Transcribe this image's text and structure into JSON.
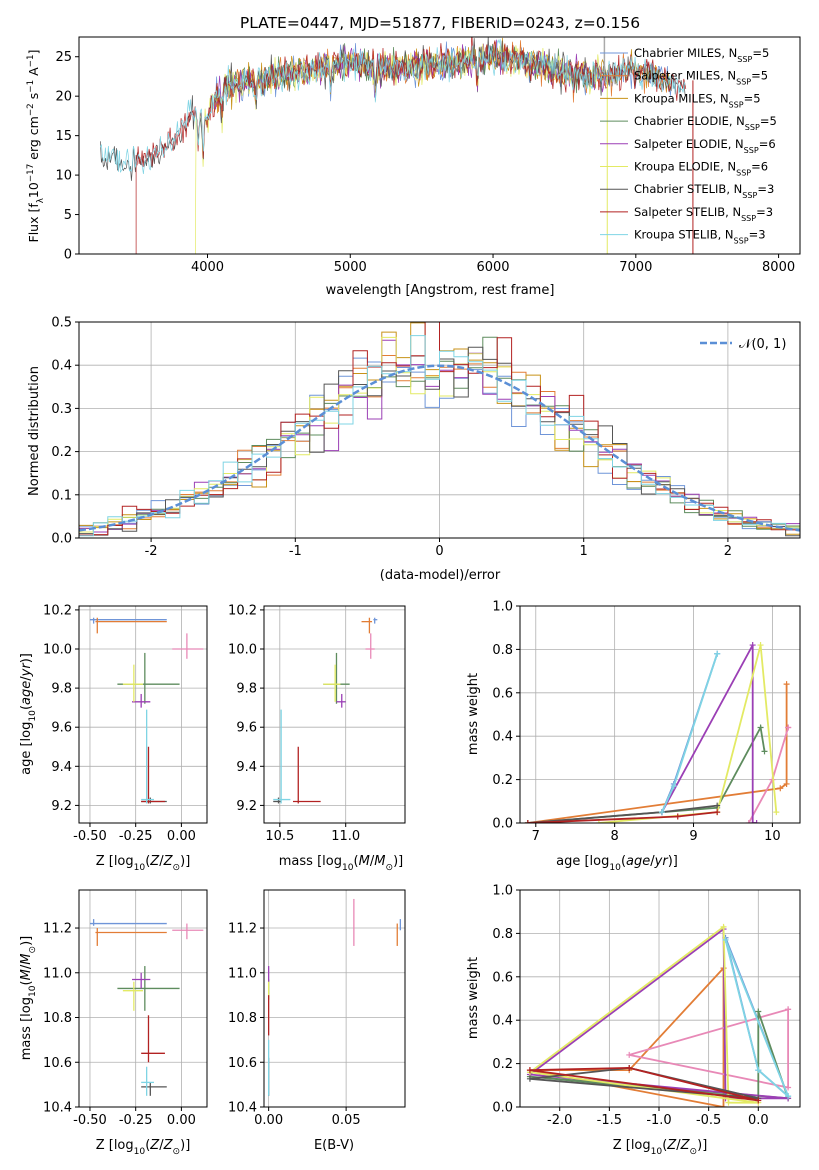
{
  "chart_data": [
    {
      "id": "spectrum",
      "type": "line",
      "title": "PLATE=0447, MJD=51877, FIBERID=0243, z=0.156",
      "xlabel": "wavelength [Angstrom, rest frame]",
      "ylabel": "Flux [fλ10⁻¹⁷ erg cm⁻² s⁻¹ A⁻¹]",
      "xlim": [
        3100,
        8150
      ],
      "ylim": [
        0,
        27.5
      ],
      "xticks": [
        4000,
        5000,
        6000,
        7000,
        8000
      ],
      "yticks": [
        0,
        5,
        10,
        15,
        20,
        25
      ],
      "grid": false,
      "legend": "right",
      "data_series_anchor_x": [
        3250,
        3400,
        3600,
        3800,
        3900,
        4000,
        4100,
        4300,
        4500,
        4800,
        5000,
        5200,
        5500,
        5800,
        6000,
        6200,
        6500,
        6800,
        7000,
        7200,
        7350
      ],
      "data_series_anchor_y": [
        12.5,
        11.5,
        12.0,
        15.5,
        18.0,
        17.5,
        21.0,
        22.0,
        22.5,
        23.5,
        24.5,
        23.5,
        23.8,
        24.5,
        25.0,
        24.6,
        23.0,
        22.5,
        23.5,
        22.0,
        21.0
      ],
      "series": [
        {
          "name": "Chabrier MILES, N",
          "sub": "SSP",
          "suffix": "=5",
          "color": "#6f95d8",
          "xrange": [
            4050,
            7250
          ]
        },
        {
          "name": "Salpeter MILES, N",
          "sub": "SSP",
          "suffix": "=5",
          "color": "#e27d36",
          "xrange": [
            4050,
            7250
          ]
        },
        {
          "name": "Kroupa MILES, N",
          "sub": "SSP",
          "suffix": "=5",
          "color": "#c89218",
          "xrange": [
            4050,
            7250
          ]
        },
        {
          "name": "Chabrier ELODIE, N",
          "sub": "SSP",
          "suffix": "=5",
          "color": "#5e8c5e",
          "xrange": [
            4050,
            6800
          ]
        },
        {
          "name": "Salpeter ELODIE, N",
          "sub": "SSP",
          "suffix": "=6",
          "color": "#9b3fb5",
          "xrange": [
            4050,
            6800
          ]
        },
        {
          "name": "Kroupa ELODIE, N",
          "sub": "SSP",
          "suffix": "=6",
          "color": "#e3ea64",
          "xrange": [
            3920,
            6800
          ]
        },
        {
          "name": "Chabrier STELIB, N",
          "sub": "SSP",
          "suffix": "=3",
          "color": "#555555",
          "xrange": [
            3250,
            7350
          ]
        },
        {
          "name": "Salpeter STELIB, N",
          "sub": "SSP",
          "suffix": "=3",
          "color": "#b22222",
          "xrange": [
            3500,
            7350
          ]
        },
        {
          "name": "Kroupa STELIB, N",
          "sub": "SSP",
          "suffix": "=3",
          "color": "#7fd4e4",
          "xrange": [
            3250,
            7350
          ]
        }
      ]
    },
    {
      "id": "residuals",
      "type": "step",
      "xlabel": "(data-model)/error",
      "ylabel": "Normed distribution",
      "xlim": [
        -2.5,
        2.5
      ],
      "ylim": [
        0,
        0.5
      ],
      "xticks": [
        -2,
        -1,
        0,
        1,
        2
      ],
      "yticks": [
        0.0,
        0.1,
        0.2,
        0.3,
        0.4,
        0.5
      ],
      "grid": true,
      "legend": "top-right",
      "gauss_label": "𝒩(0, 1)",
      "gauss_color": "#5b8fd6",
      "bin_width": 0.1,
      "bin_start": -2.5
    },
    {
      "id": "age_vs_Z",
      "type": "errorbar",
      "xlabel_pre": "Z [log",
      "xlabel_sub": "10",
      "xlabel_post": "(Z/Z",
      "xlabel": "Z [log10(Z/Z⊙)]",
      "ylabel": "age [log10(age/yr)]",
      "xlim": [
        -0.56,
        0.14
      ],
      "ylim": [
        9.11,
        10.22
      ],
      "xticks": [
        -0.5,
        -0.25,
        0.0
      ],
      "yticks": [
        9.2,
        9.4,
        9.6,
        9.8,
        10.0,
        10.2
      ],
      "grid": true
    },
    {
      "id": "age_vs_mass",
      "type": "errorbar",
      "xlabel": "mass [log10(M/M⊙)]",
      "xlim": [
        10.38,
        11.45
      ],
      "ylim": [
        9.11,
        10.22
      ],
      "xticks": [
        10.5,
        11.0
      ],
      "yticks": [
        9.2,
        9.4,
        9.6,
        9.8,
        10.0,
        10.2
      ],
      "grid": true
    },
    {
      "id": "mw_vs_age",
      "type": "line",
      "xlabel": "age [log10(age/yr)]",
      "ylabel": "mass weight",
      "xlim": [
        6.8,
        10.35
      ],
      "ylim": [
        0,
        1.0
      ],
      "xticks": [
        7,
        8,
        9,
        10
      ],
      "yticks": [
        0.0,
        0.2,
        0.4,
        0.6,
        0.8,
        1.0
      ],
      "grid": true
    },
    {
      "id": "mass_vs_Z",
      "type": "errorbar",
      "xlabel": "Z [log10(Z/Z⊙)]",
      "ylabel": "mass [log10(M/M⊙)]",
      "xlim": [
        -0.56,
        0.14
      ],
      "ylim": [
        10.4,
        11.37
      ],
      "xticks": [
        -0.5,
        -0.25,
        0.0
      ],
      "yticks": [
        10.4,
        10.6,
        10.8,
        11.0,
        11.2
      ],
      "grid": true
    },
    {
      "id": "mass_vs_ebv",
      "type": "errorbar",
      "xlabel": "E(B-V)",
      "xlim": [
        -0.003,
        0.088
      ],
      "ylim": [
        10.4,
        11.37
      ],
      "xticks": [
        0.0,
        0.05
      ],
      "yticks": [
        10.4,
        10.6,
        10.8,
        11.0,
        11.2
      ],
      "grid": true
    },
    {
      "id": "mw_vs_Z",
      "type": "line",
      "xlabel": "Z [log10(Z/Z⊙)]",
      "ylabel": "mass weight",
      "xlim": [
        -2.4,
        0.42
      ],
      "ylim": [
        0,
        1.0
      ],
      "xticks": [
        -2.0,
        -1.5,
        -1.0,
        -0.5,
        0.0
      ],
      "yticks": [
        0.0,
        0.2,
        0.4,
        0.6,
        0.8,
        1.0
      ],
      "grid": true
    }
  ],
  "fits": [
    {
      "color": "#6f95d8",
      "Z": -0.48,
      "Zlo": -0.5,
      "Zhi": -0.08,
      "age": 10.15,
      "alo": 10.13,
      "ahi": 10.16,
      "mass": 11.22,
      "mlo": 11.21,
      "mhi": 11.24,
      "ebv": 0.085,
      "elo": 11.19,
      "ehi": 11.24,
      "ages": [
        8.6,
        8.75,
        9.3
      ],
      "ageW": [
        0.05,
        0.18,
        0.78
      ],
      "Zs": [
        -0.33,
        0.0,
        0.3
      ],
      "ZW": [
        0.78,
        0.17,
        0.05
      ]
    },
    {
      "color": "#e27d36",
      "Z": -0.46,
      "Zlo": -0.47,
      "Zhi": -0.08,
      "age": 10.14,
      "alo": 10.08,
      "ahi": 10.16,
      "mass": 11.18,
      "mlo": 11.12,
      "mhi": 11.2,
      "ebv": 0.083,
      "elo": 11.12,
      "ehi": 11.22,
      "ages": [
        6.9,
        10.1,
        10.18,
        10.18
      ],
      "ageW": [
        0.0,
        0.16,
        0.18,
        0.64
      ],
      "Zs": [
        -2.3,
        -1.3,
        -0.35,
        -0.35
      ],
      "ZW": [
        0.17,
        0.17,
        0.64,
        0.0
      ]
    },
    {
      "color": "#e889b7",
      "Z": 0.03,
      "Zlo": -0.05,
      "Zhi": 0.12,
      "age": 10.0,
      "alo": 9.95,
      "ahi": 10.08,
      "mass": 11.19,
      "mlo": 11.15,
      "mhi": 11.22,
      "ebv": 0.055,
      "elo": 11.12,
      "ehi": 11.33,
      "ages": [
        9.7,
        10.0,
        10.2,
        10.2
      ],
      "ageW": [
        0.0,
        0.2,
        0.44,
        0.44
      ],
      "Zs": [
        -1.3,
        0.3,
        0.3,
        0.3
      ],
      "ZW": [
        0.24,
        0.09,
        0.45,
        0.45
      ]
    },
    {
      "color": "#5e8c5e",
      "Z": -0.2,
      "Zlo": -0.35,
      "Zhi": -0.01,
      "age": 9.82,
      "alo": 9.72,
      "ahi": 9.98,
      "mass": 10.93,
      "mlo": 10.83,
      "mhi": 11.03,
      "ebv": 0.0,
      "elo": 10.88,
      "ehi": 10.97,
      "ages": [
        6.9,
        9.3,
        9.85,
        9.9
      ],
      "ageW": [
        0.0,
        0.07,
        0.44,
        0.33
      ],
      "Zs": [
        -2.3,
        0.0,
        0.0,
        0.3
      ],
      "ZW": [
        0.14,
        0.04,
        0.44,
        0.04
      ]
    },
    {
      "color": "#9b3fb5",
      "Z": -0.22,
      "Zlo": -0.27,
      "Zhi": -0.17,
      "age": 9.73,
      "alo": 9.7,
      "ahi": 9.77,
      "mass": 10.97,
      "mlo": 10.93,
      "mhi": 11.0,
      "ebv": 0.0,
      "elo": 10.96,
      "ehi": 11.03,
      "ages": [
        8.6,
        9.75,
        9.75,
        9.8
      ],
      "ageW": [
        0.05,
        0.82,
        0.0,
        0.0
      ],
      "Zs": [
        -2.3,
        -0.35,
        -0.33,
        0.3
      ],
      "ZW": [
        0.15,
        0.82,
        0.04,
        0.04
      ]
    },
    {
      "color": "#e3ea64",
      "Z": -0.26,
      "Zlo": -0.32,
      "Zhi": -0.21,
      "age": 9.82,
      "alo": 9.73,
      "ahi": 9.92,
      "mass": 10.92,
      "mlo": 10.83,
      "mhi": 10.96,
      "ebv": 0.0,
      "elo": 10.88,
      "ehi": 10.96,
      "ages": [
        7.8,
        9.3,
        9.85,
        10.05
      ],
      "ageW": [
        0.0,
        0.05,
        0.82,
        0.05
      ],
      "Zs": [
        -2.3,
        -0.35,
        -0.3,
        0.0
      ],
      "ZW": [
        0.16,
        0.83,
        0.02,
        0.02
      ]
    },
    {
      "color": "#555555",
      "Z": -0.17,
      "Zlo": -0.22,
      "Zhi": -0.08,
      "age": 9.22,
      "alo": 9.21,
      "ahi": 9.24,
      "mass": 10.49,
      "mlo": 10.45,
      "mhi": 10.51,
      "ebv": 0.0,
      "elo": 10.45,
      "ehi": 10.62,
      "ages": [
        6.9,
        8.6,
        9.3
      ],
      "ageW": [
        0.0,
        0.05,
        0.08
      ],
      "Zs": [
        -2.3,
        -1.3,
        0.0
      ],
      "ZW": [
        0.13,
        0.18,
        0.04
      ]
    },
    {
      "color": "#b22222",
      "Z": -0.18,
      "Zlo": -0.22,
      "Zhi": -0.09,
      "age": 9.22,
      "alo": 9.21,
      "ahi": 9.5,
      "mass": 10.64,
      "mlo": 10.6,
      "mhi": 10.81,
      "ebv": 0.0,
      "elo": 10.72,
      "ehi": 10.9,
      "ages": [
        6.9,
        8.8,
        9.3
      ],
      "ageW": [
        0.0,
        0.03,
        0.05
      ],
      "Zs": [
        -2.3,
        -1.3,
        0.0
      ],
      "ZW": [
        0.17,
        0.18,
        0.03
      ]
    },
    {
      "color": "#7fd4e4",
      "Z": -0.19,
      "Zlo": -0.22,
      "Zhi": -0.15,
      "age": 9.23,
      "alo": 9.21,
      "ahi": 9.69,
      "mass": 10.51,
      "mlo": 10.45,
      "mhi": 10.58,
      "ebv": 0.0,
      "elo": 10.45,
      "ehi": 10.7,
      "ages": [
        8.6,
        8.75,
        9.3
      ],
      "ageW": [
        0.05,
        0.17,
        0.78
      ],
      "Zs": [
        -0.33,
        0.0,
        0.3
      ],
      "ZW": [
        0.77,
        0.17,
        0.05
      ]
    }
  ]
}
